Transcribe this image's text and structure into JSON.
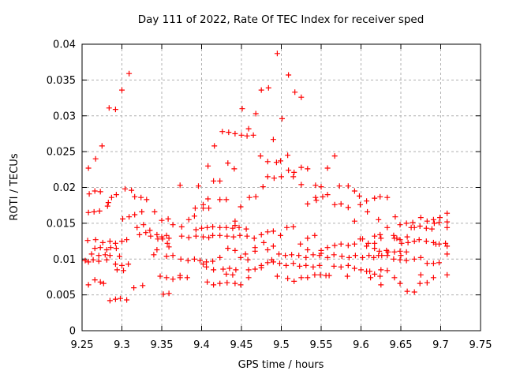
{
  "chart_data": {
    "type": "scatter",
    "title": "Day 111 of 2022, Rate Of TEC Index for receiver sped",
    "xlabel": "GPS time / hours",
    "ylabel": "ROTI / TECUs",
    "xlim": [
      9.25,
      9.75
    ],
    "ylim": [
      0,
      0.04
    ],
    "xtick_values": [
      9.25,
      9.3,
      9.35,
      9.4,
      9.45,
      9.5,
      9.55,
      9.6,
      9.65,
      9.7,
      9.75
    ],
    "xtick_labels": [
      "9.25",
      "9.3",
      "9.35",
      "9.4",
      "9.45",
      "9.5",
      "9.55",
      "9.6",
      "9.65",
      "9.7",
      "9.75"
    ],
    "ytick_values": [
      0,
      0.005,
      0.01,
      0.015,
      0.02,
      0.025,
      0.03,
      0.035,
      0.04
    ],
    "ytick_labels": [
      "0",
      "0.005",
      "0.01",
      "0.015",
      "0.02",
      "0.025",
      "0.03",
      "0.035",
      "0.04"
    ],
    "grid": true,
    "grid_color": "#b0b0b0",
    "border_color": "#000000",
    "marker": "plus",
    "marker_color": "#ff0000",
    "marker_size": 7,
    "legend": null,
    "points": [
      [
        9.309,
        0.0359
      ],
      [
        9.3,
        0.0336
      ],
      [
        9.284,
        0.0311
      ],
      [
        9.292,
        0.0309
      ],
      [
        9.275,
        0.0258
      ],
      [
        9.267,
        0.024
      ],
      [
        9.258,
        0.0227
      ],
      [
        9.475,
        0.0336
      ],
      [
        9.484,
        0.0339
      ],
      [
        9.451,
        0.031
      ],
      [
        9.468,
        0.0303
      ],
      [
        9.459,
        0.0282
      ],
      [
        9.426,
        0.0278
      ],
      [
        9.434,
        0.0277
      ],
      [
        9.442,
        0.0275
      ],
      [
        9.45,
        0.0273
      ],
      [
        9.457,
        0.0272
      ],
      [
        9.465,
        0.0273
      ],
      [
        9.49,
        0.0267
      ],
      [
        9.416,
        0.0258
      ],
      [
        9.474,
        0.0244
      ],
      [
        9.483,
        0.0236
      ],
      [
        9.408,
        0.023
      ],
      [
        9.433,
        0.0234
      ],
      [
        9.441,
        0.0226
      ],
      [
        9.483,
        0.0215
      ],
      [
        9.415,
        0.0209
      ],
      [
        9.423,
        0.0209
      ],
      [
        9.495,
        0.0387
      ],
      [
        9.509,
        0.0357
      ],
      [
        9.517,
        0.0333
      ],
      [
        9.525,
        0.0326
      ],
      [
        9.501,
        0.0296
      ],
      [
        9.508,
        0.0245
      ],
      [
        9.499,
        0.0237
      ],
      [
        9.494,
        0.0235
      ],
      [
        9.567,
        0.0244
      ],
      [
        9.558,
        0.0227
      ],
      [
        9.525,
        0.0228
      ],
      [
        9.533,
        0.0226
      ],
      [
        9.509,
        0.0224
      ],
      [
        9.516,
        0.0221
      ],
      [
        9.5,
        0.0215
      ],
      [
        9.491,
        0.0213
      ],
      [
        9.515,
        0.0215
      ],
      [
        9.525,
        0.0204
      ],
      [
        9.543,
        0.0203
      ],
      [
        9.55,
        0.0201
      ],
      [
        9.573,
        0.0202
      ],
      [
        9.584,
        0.0202
      ],
      [
        9.259,
        0.0191
      ],
      [
        9.266,
        0.0195
      ],
      [
        9.273,
        0.0194
      ],
      [
        9.304,
        0.0198
      ],
      [
        9.312,
        0.0196
      ],
      [
        9.287,
        0.0186
      ],
      [
        9.293,
        0.019
      ],
      [
        9.316,
        0.0187
      ],
      [
        9.324,
        0.0186
      ],
      [
        9.331,
        0.0183
      ],
      [
        9.283,
        0.0179
      ],
      [
        9.282,
        0.0174
      ],
      [
        9.258,
        0.0165
      ],
      [
        9.265,
        0.0166
      ],
      [
        9.272,
        0.0167
      ],
      [
        9.301,
        0.0156
      ],
      [
        9.309,
        0.0159
      ],
      [
        9.316,
        0.0162
      ],
      [
        9.325,
        0.0166
      ],
      [
        9.341,
        0.0166
      ],
      [
        9.35,
        0.0154
      ],
      [
        9.358,
        0.0156
      ],
      [
        9.257,
        0.0126
      ],
      [
        9.267,
        0.0127
      ],
      [
        9.276,
        0.0123
      ],
      [
        9.285,
        0.0125
      ],
      [
        9.292,
        0.0122
      ],
      [
        9.3,
        0.0125
      ],
      [
        9.306,
        0.0127
      ],
      [
        9.266,
        0.0115
      ],
      [
        9.273,
        0.0116
      ],
      [
        9.281,
        0.0113
      ],
      [
        9.286,
        0.0116
      ],
      [
        9.293,
        0.0115
      ],
      [
        9.262,
        0.0107
      ],
      [
        9.271,
        0.0105
      ],
      [
        9.279,
        0.0106
      ],
      [
        9.285,
        0.0105
      ],
      [
        9.297,
        0.0104
      ],
      [
        9.254,
        0.0098
      ],
      [
        9.258,
        0.0096
      ],
      [
        9.264,
        0.0099
      ],
      [
        9.271,
        0.0097
      ],
      [
        9.281,
        0.0099
      ],
      [
        9.292,
        0.0093
      ],
      [
        9.3,
        0.0091
      ],
      [
        9.308,
        0.0093
      ],
      [
        9.294,
        0.0085
      ],
      [
        9.302,
        0.0084
      ],
      [
        9.258,
        0.0064
      ],
      [
        9.266,
        0.0071
      ],
      [
        9.273,
        0.0068
      ],
      [
        9.277,
        0.0066
      ],
      [
        9.285,
        0.0042
      ],
      [
        9.292,
        0.0044
      ],
      [
        9.298,
        0.0045
      ],
      [
        9.306,
        0.0043
      ],
      [
        9.319,
        0.0144
      ],
      [
        9.327,
        0.0148
      ],
      [
        9.335,
        0.014
      ],
      [
        9.322,
        0.0134
      ],
      [
        9.33,
        0.0137
      ],
      [
        9.336,
        0.0132
      ],
      [
        9.344,
        0.0134
      ],
      [
        9.35,
        0.0131
      ],
      [
        9.356,
        0.0133
      ],
      [
        9.345,
        0.0128
      ],
      [
        9.351,
        0.0128
      ],
      [
        9.359,
        0.0129
      ],
      [
        9.357,
        0.0122
      ],
      [
        9.359,
        0.0117
      ],
      [
        9.344,
        0.0113
      ],
      [
        9.34,
        0.0106
      ],
      [
        9.356,
        0.0104
      ],
      [
        9.348,
        0.0076
      ],
      [
        9.356,
        0.0074
      ],
      [
        9.326,
        0.0063
      ],
      [
        9.315,
        0.006
      ],
      [
        9.352,
        0.0051
      ],
      [
        9.359,
        0.0052
      ],
      [
        9.373,
        0.0203
      ],
      [
        9.396,
        0.0202
      ],
      [
        9.477,
        0.0201
      ],
      [
        9.46,
        0.0186
      ],
      [
        9.468,
        0.0187
      ],
      [
        9.408,
        0.0184
      ],
      [
        9.423,
        0.0183
      ],
      [
        9.431,
        0.0183
      ],
      [
        9.402,
        0.0176
      ],
      [
        9.402,
        0.0171
      ],
      [
        9.392,
        0.0171
      ],
      [
        9.409,
        0.0171
      ],
      [
        9.449,
        0.0173
      ],
      [
        9.384,
        0.0155
      ],
      [
        9.391,
        0.016
      ],
      [
        9.442,
        0.0153
      ],
      [
        9.442,
        0.0147
      ],
      [
        9.364,
        0.0148
      ],
      [
        9.375,
        0.0145
      ],
      [
        9.393,
        0.0141
      ],
      [
        9.4,
        0.0143
      ],
      [
        9.407,
        0.0144
      ],
      [
        9.414,
        0.0145
      ],
      [
        9.423,
        0.0144
      ],
      [
        9.431,
        0.0144
      ],
      [
        9.439,
        0.0143
      ],
      [
        9.447,
        0.0144
      ],
      [
        9.456,
        0.0142
      ],
      [
        9.375,
        0.0132
      ],
      [
        9.384,
        0.013
      ],
      [
        9.393,
        0.0132
      ],
      [
        9.402,
        0.0131
      ],
      [
        9.409,
        0.013
      ],
      [
        9.414,
        0.0133
      ],
      [
        9.423,
        0.0133
      ],
      [
        9.432,
        0.0132
      ],
      [
        9.44,
        0.0131
      ],
      [
        9.448,
        0.0133
      ],
      [
        9.457,
        0.0132
      ],
      [
        9.466,
        0.0129
      ],
      [
        9.475,
        0.0134
      ],
      [
        9.483,
        0.0138
      ],
      [
        9.49,
        0.0139
      ],
      [
        9.478,
        0.0123
      ],
      [
        9.49,
        0.0118
      ],
      [
        9.433,
        0.0115
      ],
      [
        9.442,
        0.0112
      ],
      [
        9.455,
        0.0107
      ],
      [
        9.467,
        0.0116
      ],
      [
        9.467,
        0.0111
      ],
      [
        9.483,
        0.0113
      ],
      [
        9.364,
        0.0105
      ],
      [
        9.374,
        0.01
      ],
      [
        9.383,
        0.0098
      ],
      [
        9.391,
        0.01
      ],
      [
        9.398,
        0.0098
      ],
      [
        9.406,
        0.0096
      ],
      [
        9.414,
        0.0097
      ],
      [
        9.423,
        0.0102
      ],
      [
        9.449,
        0.0102
      ],
      [
        9.458,
        0.0099
      ],
      [
        9.402,
        0.0093
      ],
      [
        9.406,
        0.0089
      ],
      [
        9.415,
        0.0085
      ],
      [
        9.427,
        0.0086
      ],
      [
        9.435,
        0.0087
      ],
      [
        9.443,
        0.0085
      ],
      [
        9.431,
        0.0079
      ],
      [
        9.439,
        0.0078
      ],
      [
        9.459,
        0.0085
      ],
      [
        9.467,
        0.0086
      ],
      [
        9.475,
        0.0088
      ],
      [
        9.475,
        0.0091
      ],
      [
        9.483,
        0.0095
      ],
      [
        9.49,
        0.0096
      ],
      [
        9.488,
        0.0099
      ],
      [
        9.373,
        0.0077
      ],
      [
        9.373,
        0.0074
      ],
      [
        9.382,
        0.0074
      ],
      [
        9.364,
        0.0072
      ],
      [
        9.407,
        0.0068
      ],
      [
        9.415,
        0.0064
      ],
      [
        9.423,
        0.0066
      ],
      [
        9.432,
        0.0067
      ],
      [
        9.442,
        0.0066
      ],
      [
        9.449,
        0.0064
      ],
      [
        9.459,
        0.0074
      ],
      [
        9.592,
        0.0195
      ],
      [
        9.598,
        0.0188
      ],
      [
        9.543,
        0.0186
      ],
      [
        9.552,
        0.0187
      ],
      [
        9.558,
        0.019
      ],
      [
        9.533,
        0.0177
      ],
      [
        9.544,
        0.0182
      ],
      [
        9.567,
        0.0176
      ],
      [
        9.575,
        0.0177
      ],
      [
        9.584,
        0.0172
      ],
      [
        9.599,
        0.0176
      ],
      [
        9.607,
        0.0181
      ],
      [
        9.617,
        0.0185
      ],
      [
        9.608,
        0.0166
      ],
      [
        9.592,
        0.0153
      ],
      [
        9.507,
        0.0144
      ],
      [
        9.515,
        0.0145
      ],
      [
        9.499,
        0.0133
      ],
      [
        9.533,
        0.0129
      ],
      [
        9.542,
        0.0133
      ],
      [
        9.524,
        0.0121
      ],
      [
        9.533,
        0.0113
      ],
      [
        9.55,
        0.0112
      ],
      [
        9.55,
        0.0108
      ],
      [
        9.558,
        0.0116
      ],
      [
        9.567,
        0.0119
      ],
      [
        9.575,
        0.0121
      ],
      [
        9.584,
        0.0119
      ],
      [
        9.592,
        0.0121
      ],
      [
        9.599,
        0.0128
      ],
      [
        9.602,
        0.0128
      ],
      [
        9.609,
        0.0122
      ],
      [
        9.617,
        0.0132
      ],
      [
        9.617,
        0.0122
      ],
      [
        9.607,
        0.0118
      ],
      [
        9.617,
        0.0115
      ],
      [
        9.497,
        0.0107
      ],
      [
        9.505,
        0.0105
      ],
      [
        9.513,
        0.0106
      ],
      [
        9.522,
        0.0105
      ],
      [
        9.531,
        0.0102
      ],
      [
        9.54,
        0.0106
      ],
      [
        9.548,
        0.0105
      ],
      [
        9.558,
        0.0102
      ],
      [
        9.566,
        0.0106
      ],
      [
        9.576,
        0.0104
      ],
      [
        9.585,
        0.0102
      ],
      [
        9.593,
        0.0105
      ],
      [
        9.602,
        0.0102
      ],
      [
        9.61,
        0.0105
      ],
      [
        9.616,
        0.0102
      ],
      [
        9.498,
        0.0094
      ],
      [
        9.506,
        0.0091
      ],
      [
        9.515,
        0.0094
      ],
      [
        9.523,
        0.009
      ],
      [
        9.531,
        0.0091
      ],
      [
        9.54,
        0.0089
      ],
      [
        9.548,
        0.0091
      ],
      [
        9.566,
        0.009
      ],
      [
        9.575,
        0.0089
      ],
      [
        9.584,
        0.0091
      ],
      [
        9.592,
        0.0087
      ],
      [
        9.6,
        0.0085
      ],
      [
        9.607,
        0.0083
      ],
      [
        9.611,
        0.0083
      ],
      [
        9.617,
        0.0079
      ],
      [
        9.495,
        0.0076
      ],
      [
        9.508,
        0.0073
      ],
      [
        9.516,
        0.0069
      ],
      [
        9.525,
        0.0074
      ],
      [
        9.533,
        0.0074
      ],
      [
        9.542,
        0.0078
      ],
      [
        9.549,
        0.0078
      ],
      [
        9.556,
        0.0077
      ],
      [
        9.56,
        0.0077
      ],
      [
        9.583,
        0.0076
      ],
      [
        9.612,
        0.0074
      ],
      [
        9.624,
        0.0187
      ],
      [
        9.633,
        0.0186
      ],
      [
        9.643,
        0.0159
      ],
      [
        9.622,
        0.0155
      ],
      [
        9.633,
        0.0144
      ],
      [
        9.649,
        0.0148
      ],
      [
        9.657,
        0.015
      ],
      [
        9.665,
        0.0151
      ],
      [
        9.663,
        0.0144
      ],
      [
        9.667,
        0.0144
      ],
      [
        9.675,
        0.0158
      ],
      [
        9.674,
        0.0146
      ],
      [
        9.683,
        0.0153
      ],
      [
        9.691,
        0.0155
      ],
      [
        9.692,
        0.015
      ],
      [
        9.698,
        0.0151
      ],
      [
        9.699,
        0.0158
      ],
      [
        9.708,
        0.0164
      ],
      [
        9.708,
        0.0152
      ],
      [
        9.708,
        0.0144
      ],
      [
        9.682,
        0.0143
      ],
      [
        9.689,
        0.0142
      ],
      [
        9.624,
        0.0134
      ],
      [
        9.625,
        0.0129
      ],
      [
        9.641,
        0.0133
      ],
      [
        9.642,
        0.0129
      ],
      [
        9.645,
        0.0129
      ],
      [
        9.649,
        0.0127
      ],
      [
        9.651,
        0.0122
      ],
      [
        9.658,
        0.0131
      ],
      [
        9.659,
        0.0123
      ],
      [
        9.667,
        0.0125
      ],
      [
        9.673,
        0.0127
      ],
      [
        9.682,
        0.0125
      ],
      [
        9.691,
        0.0123
      ],
      [
        9.694,
        0.0121
      ],
      [
        9.698,
        0.0121
      ],
      [
        9.706,
        0.0122
      ],
      [
        9.708,
        0.0118
      ],
      [
        9.623,
        0.0111
      ],
      [
        9.632,
        0.0112
      ],
      [
        9.634,
        0.011
      ],
      [
        9.622,
        0.0105
      ],
      [
        9.626,
        0.0105
      ],
      [
        9.633,
        0.0105
      ],
      [
        9.642,
        0.011
      ],
      [
        9.649,
        0.0111
      ],
      [
        9.657,
        0.011
      ],
      [
        9.641,
        0.01
      ],
      [
        9.649,
        0.0099
      ],
      [
        9.65,
        0.0105
      ],
      [
        9.657,
        0.0098
      ],
      [
        9.667,
        0.01
      ],
      [
        9.675,
        0.0102
      ],
      [
        9.683,
        0.0094
      ],
      [
        9.691,
        0.0094
      ],
      [
        9.698,
        0.0095
      ],
      [
        9.708,
        0.0107
      ],
      [
        9.625,
        0.0085
      ],
      [
        9.633,
        0.0084
      ],
      [
        9.624,
        0.0076
      ],
      [
        9.642,
        0.0074
      ],
      [
        9.625,
        0.0064
      ],
      [
        9.649,
        0.0066
      ],
      [
        9.675,
        0.0078
      ],
      [
        9.691,
        0.0074
      ],
      [
        9.708,
        0.0078
      ],
      [
        9.674,
        0.0066
      ],
      [
        9.683,
        0.0067
      ],
      [
        9.658,
        0.0055
      ],
      [
        9.667,
        0.0054
      ]
    ]
  }
}
